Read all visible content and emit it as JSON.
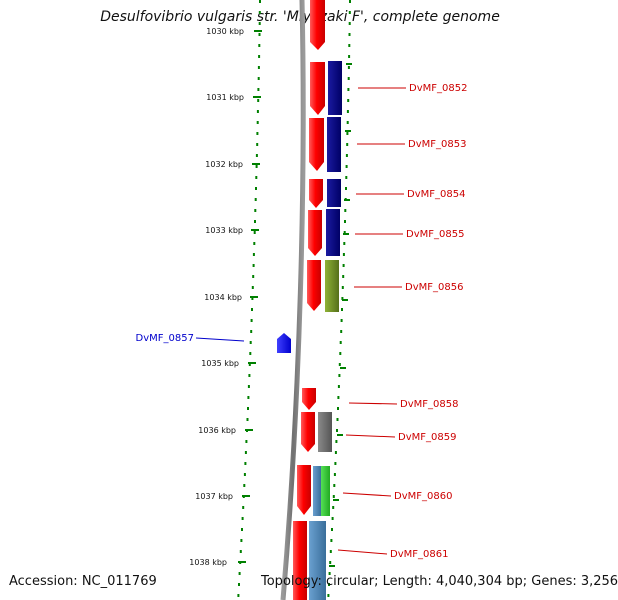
{
  "title": "Desulfovibrio vulgaris str. 'Miyazaki F', complete genome",
  "footer": {
    "accession": "Accession: NC_011769",
    "topology": "Topology: circular; Length: 4,040,304 bp; Genes: 3,256"
  },
  "scale": {
    "unit": "kbp",
    "ticks": [
      "1030 kbp",
      "1031 kbp",
      "1032 kbp",
      "1033 kbp",
      "1034 kbp",
      "1035 kbp",
      "1036 kbp",
      "1037 kbp",
      "1038 kbp"
    ]
  },
  "colors": {
    "forward_gene": "#ff0000",
    "reverse_gene": "#0000ff",
    "dark_navy": "#000080",
    "olive": "#6b8e23",
    "gray": "#707070",
    "green": "#33cc33",
    "steel_blue": "#4682b4",
    "tick_green": "#008000",
    "backbone": "#808080"
  },
  "genes": [
    {
      "label": "DvMF_0852",
      "color": "#ff0000"
    },
    {
      "label": "DvMF_0853",
      "color": "#ff0000"
    },
    {
      "label": "DvMF_0854",
      "color": "#ff0000"
    },
    {
      "label": "DvMF_0855",
      "color": "#ff0000"
    },
    {
      "label": "DvMF_0856",
      "color": "#ff0000"
    },
    {
      "label": "DvMF_0857",
      "color": "#0000ff"
    },
    {
      "label": "DvMF_0858",
      "color": "#ff0000"
    },
    {
      "label": "DvMF_0859",
      "color": "#ff0000"
    },
    {
      "label": "DvMF_0860",
      "color": "#ff0000"
    },
    {
      "label": "DvMF_0861",
      "color": "#ff0000"
    }
  ]
}
